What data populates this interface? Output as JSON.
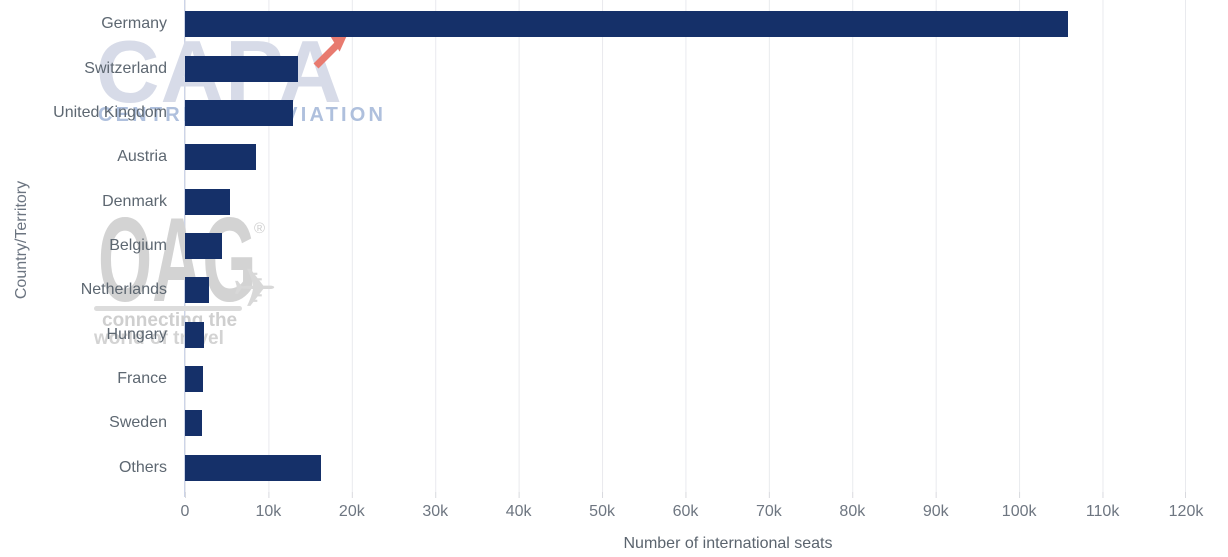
{
  "chart_data": {
    "type": "bar",
    "orientation": "horizontal",
    "categories": [
      "Germany",
      "Switzerland",
      "United Kingdom",
      "Austria",
      "Denmark",
      "Belgium",
      "Netherlands",
      "Hungary",
      "France",
      "Sweden",
      "Others"
    ],
    "values": [
      105800,
      13600,
      12900,
      8500,
      5400,
      4400,
      2900,
      2300,
      2200,
      2000,
      16300
    ],
    "xlabel": "Number of international seats",
    "ylabel": "Country/Territory",
    "xlim": [
      0,
      120000
    ],
    "x_ticks": [
      0,
      10000,
      20000,
      30000,
      40000,
      50000,
      60000,
      70000,
      80000,
      90000,
      100000,
      110000,
      120000
    ],
    "x_tick_labels": [
      "0",
      "10k",
      "20k",
      "30k",
      "40k",
      "50k",
      "60k",
      "70k",
      "80k",
      "90k",
      "100k",
      "110k",
      "120k"
    ],
    "bar_color": "#153069",
    "grid": true,
    "legend": false
  },
  "watermarks": {
    "capa": {
      "word": "CAPA",
      "subtext": "CENTRE FOR AVIATION",
      "arrow_color": "#e87a6f",
      "word_color": "#d7dbe8",
      "subtext_color": "#afc0dd"
    },
    "oag": {
      "word": "OAG",
      "registered_mark": "®",
      "tagline_line1": "connecting the",
      "tagline_line2": "world of travel",
      "color": "#d3d3d3"
    }
  },
  "colors": {
    "bar": "#153069",
    "gridline": "#e9eaee",
    "axis_line": "#ccd4e8",
    "tick_mark": "#d8d9de",
    "category_label": "#5d6771",
    "tick_label": "#6e7681",
    "axis_title": "#5b646e"
  }
}
